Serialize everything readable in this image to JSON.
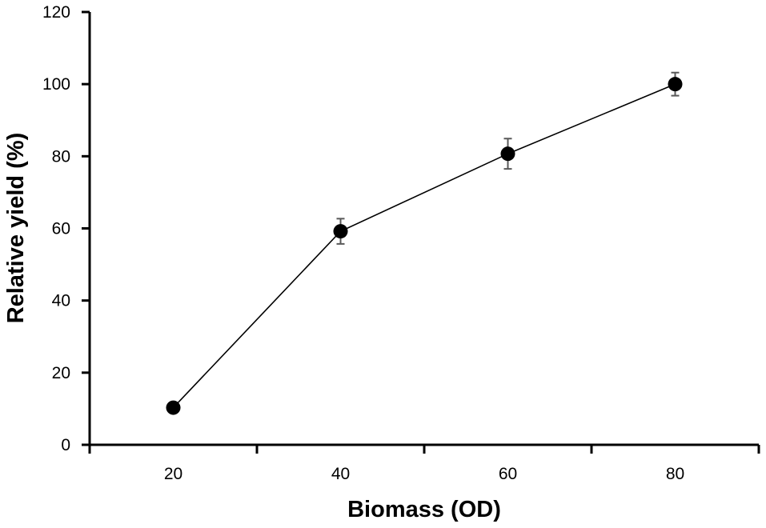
{
  "chart_data": {
    "type": "line",
    "title": "",
    "xlabel": "Biomass (OD)",
    "ylabel": "Relative yield (%)",
    "xlim": [
      10,
      90
    ],
    "ylim": [
      0,
      120
    ],
    "x_ticks": [
      20,
      40,
      60,
      80
    ],
    "y_ticks": [
      0,
      20,
      40,
      60,
      80,
      100,
      120
    ],
    "grid": false,
    "legend": "none",
    "series": [
      {
        "x": [
          20,
          40,
          60,
          80
        ],
        "y": [
          10.3,
          59.2,
          80.7,
          100
        ],
        "error": [
          0,
          3.5,
          4.2,
          3.2
        ],
        "marker": "circle",
        "color": "#000000",
        "line_color": "#000000",
        "error_color": "#595959"
      }
    ]
  }
}
